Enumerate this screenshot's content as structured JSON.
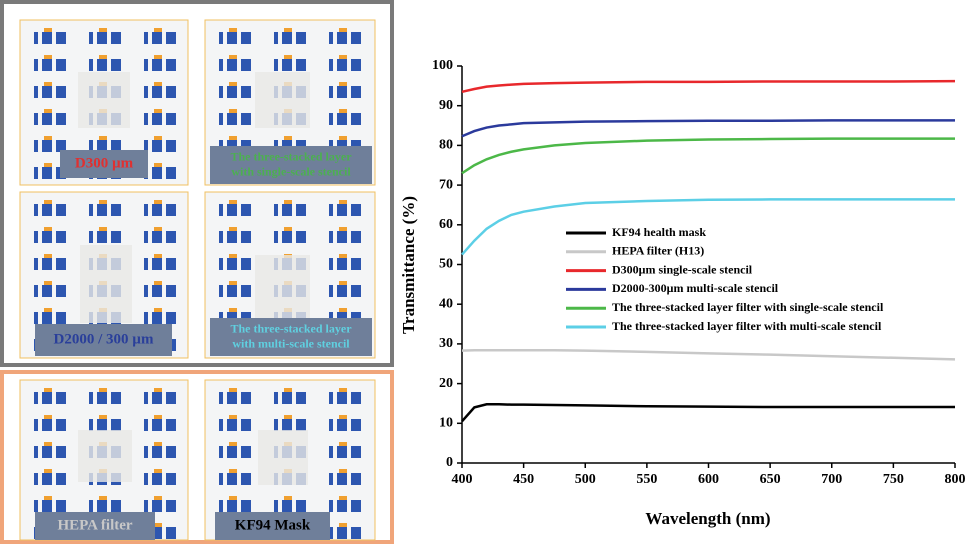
{
  "panels": [
    {
      "lines": [
        "D300 µm"
      ],
      "color": "#e03030"
    },
    {
      "lines": [
        "The three-stacked layer",
        "with single-scale stencil"
      ],
      "color": "#4cb050"
    },
    {
      "lines": [
        "D2000 / 300 µm"
      ],
      "color": "#2a3f9a"
    },
    {
      "lines": [
        "The three-stacked layer",
        "with multi-scale stencil"
      ],
      "color": "#5fd0e0"
    },
    {
      "lines": [
        "HEPA filter"
      ],
      "color": "#c8c8c8"
    },
    {
      "lines": [
        "KF94 Mask"
      ],
      "color": "#000000"
    }
  ],
  "chart_data": {
    "type": "line",
    "x_label": "Wavelength (nm)",
    "y_label": "Transmittance (%)",
    "x": [
      400,
      410,
      420,
      430,
      440,
      450,
      475,
      500,
      550,
      600,
      650,
      700,
      750,
      800
    ],
    "xlim": [
      400,
      800
    ],
    "xticks": [
      400,
      450,
      500,
      550,
      600,
      650,
      700,
      750,
      800
    ],
    "ylim": [
      0,
      100
    ],
    "yticks": [
      0,
      10,
      20,
      30,
      40,
      50,
      60,
      70,
      80,
      90,
      100
    ],
    "series": [
      {
        "name": "KF94 health mask",
        "color": "#000000",
        "values": [
          10.5,
          14,
          14.8,
          14.8,
          14.7,
          14.7,
          14.6,
          14.5,
          14.3,
          14.2,
          14.1,
          14.1,
          14.1,
          14.1
        ]
      },
      {
        "name": "HEPA filter (H13)",
        "color": "#c8c8c8",
        "values": [
          28.3,
          28.4,
          28.4,
          28.4,
          28.4,
          28.4,
          28.4,
          28.3,
          28,
          27.6,
          27.3,
          26.9,
          26.5,
          26.1
        ]
      },
      {
        "name": "D300μm single-scale stencil",
        "color": "#e8282c",
        "values": [
          93.5,
          94.2,
          94.8,
          95.1,
          95.3,
          95.5,
          95.7,
          95.8,
          96,
          96,
          96.1,
          96.1,
          96.1,
          96.2
        ]
      },
      {
        "name": "D2000-300μm multi-scale stencil",
        "color": "#2b3a9c",
        "values": [
          82.3,
          83.6,
          84.5,
          85,
          85.3,
          85.6,
          85.8,
          86,
          86.1,
          86.2,
          86.2,
          86.3,
          86.3,
          86.3
        ]
      },
      {
        "name": "The three-stacked layer filter with single-scale stencil",
        "color": "#4cb848",
        "values": [
          73,
          75,
          76.5,
          77.6,
          78.4,
          79,
          80,
          80.6,
          81.2,
          81.5,
          81.6,
          81.7,
          81.7,
          81.7
        ]
      },
      {
        "name": "The three-stacked layer filter with multi-scale stencil",
        "color": "#5ccfe6",
        "values": [
          52.5,
          56,
          59,
          61,
          62.5,
          63.3,
          64.6,
          65.5,
          66,
          66.3,
          66.4,
          66.4,
          66.4,
          66.4
        ]
      }
    ]
  }
}
